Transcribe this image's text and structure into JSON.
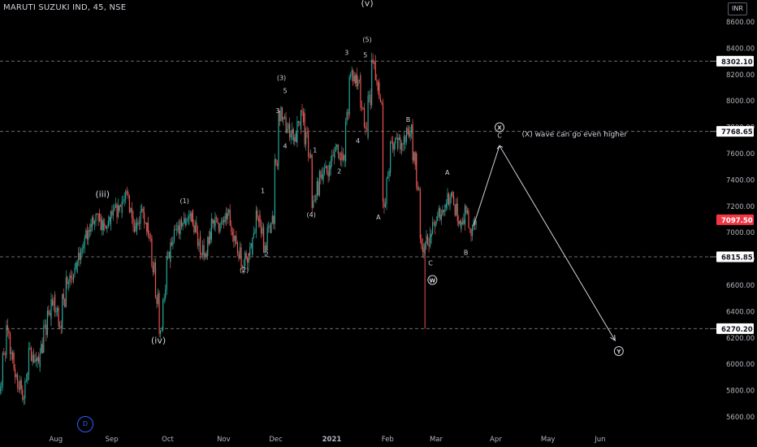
{
  "chart_data": {
    "type": "candlestick",
    "title": "MARUTI SUZUKI IND, 45, NSE",
    "currency": "INR",
    "interval_badge": "D",
    "ylim": [
      5500,
      8650
    ],
    "y_ticks": [
      5600,
      5800,
      6000,
      6200,
      6400,
      6600,
      6800,
      7000,
      7200,
      7400,
      7600,
      7800,
      8000,
      8200,
      8400,
      8600
    ],
    "y_tick_labels": [
      "5600.00",
      "5800.00",
      "6000.00",
      "6200.00",
      "6400.00",
      "6600.00",
      "6800.00",
      "7000.00",
      "7200.00",
      "7400.00",
      "7600.00",
      "7800.00",
      "8000.00",
      "8200.00",
      "8400.00",
      "8600.00"
    ],
    "x_ticks": [
      "Aug",
      "Sep",
      "Oct",
      "Nov",
      "Dec",
      "2021",
      "Feb",
      "Mar",
      "Apr",
      "May",
      "Jun"
    ],
    "x_tick_index": [
      15,
      30,
      45,
      60,
      74,
      89,
      104,
      117,
      133,
      147,
      161
    ],
    "x_range": [
      0,
      190
    ],
    "price_path": [
      [
        0,
        5850
      ],
      [
        2,
        6250
      ],
      [
        4,
        5920
      ],
      [
        6,
        5760
      ],
      [
        8,
        6080
      ],
      [
        10,
        6010
      ],
      [
        12,
        6250
      ],
      [
        14,
        6480
      ],
      [
        16,
        6320
      ],
      [
        18,
        6650
      ],
      [
        20,
        6720
      ],
      [
        22,
        6880
      ],
      [
        24,
        7050
      ],
      [
        26,
        7100
      ],
      [
        28,
        7020
      ],
      [
        30,
        7130
      ],
      [
        32,
        7200
      ],
      [
        34,
        7280
      ],
      [
        36,
        7060
      ],
      [
        38,
        7130
      ],
      [
        40,
        6950
      ],
      [
        42,
        6500
      ],
      [
        43,
        6270
      ],
      [
        45,
        6800
      ],
      [
        47,
        7000
      ],
      [
        49,
        7080
      ],
      [
        51,
        7130
      ],
      [
        53,
        6950
      ],
      [
        55,
        6800
      ],
      [
        57,
        7100
      ],
      [
        59,
        7050
      ],
      [
        61,
        7130
      ],
      [
        63,
        6930
      ],
      [
        65,
        6780
      ],
      [
        67,
        6870
      ],
      [
        69,
        7120
      ],
      [
        71,
        6900
      ],
      [
        73,
        7120
      ],
      [
        75,
        7900
      ],
      [
        77,
        7780
      ],
      [
        79,
        7720
      ],
      [
        81,
        7880
      ],
      [
        83,
        7550
      ],
      [
        84,
        7220
      ],
      [
        86,
        7450
      ],
      [
        88,
        7480
      ],
      [
        90,
        7650
      ],
      [
        92,
        7550
      ],
      [
        94,
        8200
      ],
      [
        96,
        8150
      ],
      [
        98,
        7750
      ],
      [
        100,
        8280
      ],
      [
        102,
        7980
      ],
      [
        103,
        7200
      ],
      [
        105,
        7650
      ],
      [
        108,
        7700
      ],
      [
        110,
        7780
      ],
      [
        112,
        7350
      ],
      [
        113,
        6900
      ],
      [
        115,
        6950
      ],
      [
        117,
        7100
      ],
      [
        119,
        7200
      ],
      [
        121,
        7300
      ],
      [
        123,
        7050
      ],
      [
        125,
        7150
      ],
      [
        126,
        7000
      ],
      [
        127,
        7060
      ]
    ],
    "spike_wick": {
      "x": 114,
      "low": 6270,
      "high": 6900
    },
    "projection": [
      [
        127,
        7050
      ],
      [
        134,
        7660
      ],
      [
        165,
        6180
      ]
    ],
    "horizontal_lines": [
      {
        "price": 8302.1,
        "label": "8302.10",
        "color": "#868993"
      },
      {
        "price": 7768.65,
        "label": "7768.65",
        "color": "#868993"
      },
      {
        "price": 6815.85,
        "label": "6815.85",
        "color": "#868993"
      },
      {
        "price": 6270.2,
        "label": "6270.20",
        "color": "#868993"
      }
    ],
    "last_price": {
      "price": 7097.5,
      "label": "7097.50",
      "color": "#f23645"
    },
    "annotations": [
      {
        "text": "(iii)",
        "x": 27.5,
        "y": 7270,
        "size": 11
      },
      {
        "text": "(iv)",
        "x": 42.5,
        "y": 6160,
        "size": 11
      },
      {
        "text": "(v)",
        "x": 98.5,
        "y": 8720,
        "size": 11
      },
      {
        "text": "(1)",
        "x": 49.5,
        "y": 7225,
        "size": 8
      },
      {
        "text": "(2)",
        "x": 65.5,
        "y": 6700,
        "size": 8
      },
      {
        "text": "(3)",
        "x": 75.5,
        "y": 8160,
        "size": 8
      },
      {
        "text": "(4)",
        "x": 83.5,
        "y": 7120,
        "size": 8
      },
      {
        "text": "(5)",
        "x": 98.5,
        "y": 8450,
        "size": 8
      },
      {
        "text": "1",
        "x": 70.5,
        "y": 7300,
        "size": 8
      },
      {
        "text": "2",
        "x": 71.5,
        "y": 6820,
        "size": 8
      },
      {
        "text": "3",
        "x": 74.5,
        "y": 7910,
        "size": 8
      },
      {
        "text": "4",
        "x": 76.5,
        "y": 7640,
        "size": 8
      },
      {
        "text": "5",
        "x": 76.5,
        "y": 8060,
        "size": 8
      },
      {
        "text": "1",
        "x": 84.5,
        "y": 7610,
        "size": 8
      },
      {
        "text": "2",
        "x": 91,
        "y": 7450,
        "size": 8
      },
      {
        "text": "3",
        "x": 93,
        "y": 8350,
        "size": 8
      },
      {
        "text": "4",
        "x": 96,
        "y": 7680,
        "size": 8
      },
      {
        "text": "5",
        "x": 98,
        "y": 8330,
        "size": 8
      },
      {
        "text": "A",
        "x": 101.5,
        "y": 7100,
        "size": 8
      },
      {
        "text": "B",
        "x": 109.5,
        "y": 7840,
        "size": 8
      },
      {
        "text": "C",
        "x": 115.5,
        "y": 6750,
        "size": 8
      },
      {
        "text": "A",
        "x": 120,
        "y": 7440,
        "size": 8
      },
      {
        "text": "B",
        "x": 125,
        "y": 6830,
        "size": 8
      },
      {
        "text": "C",
        "x": 134,
        "y": 7720,
        "size": 8
      },
      {
        "text": "(X) wave can go even higher",
        "x": 140,
        "y": 7730,
        "size": 9,
        "anchor": "start"
      }
    ],
    "circled": [
      {
        "text": "W",
        "x": 116,
        "y": 6640
      },
      {
        "text": "X",
        "x": 134,
        "y": 7800
      },
      {
        "text": "Y",
        "x": 166,
        "y": 6100
      }
    ],
    "colors": {
      "up": "#26a69a",
      "down": "#ef5350",
      "grid": "#363a45",
      "axis_text": "#b2b5be",
      "annotation": "#d1d4dc",
      "projection": "#d1d4dc"
    }
  }
}
